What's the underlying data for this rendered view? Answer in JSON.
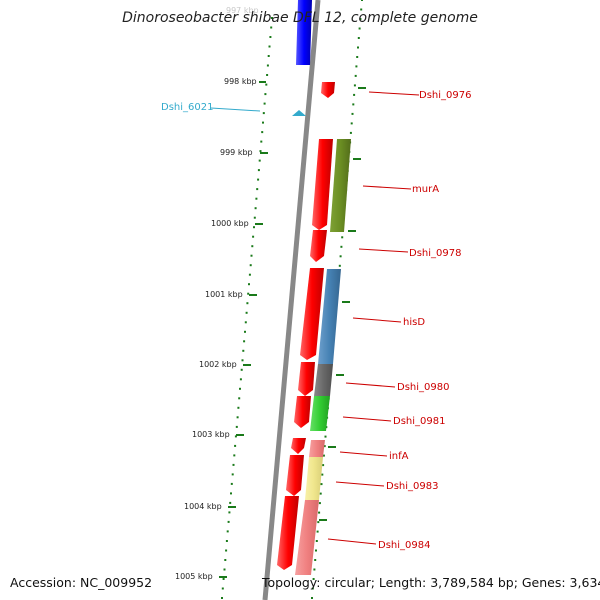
{
  "title": "Dinoroseobacter shibae DFL 12, complete genome",
  "footer": {
    "accession": "Accession: NC_009952",
    "topology": "Topology: circular; Length: 3,789,584 bp; Genes: 3,634"
  },
  "colors": {
    "forward_strand": "#ff0000",
    "reverse_strand_ticks": "#1a7a1a",
    "label_red": "#cc0000",
    "label_cyan": "#33aacc",
    "backbone": "#888888"
  },
  "scale": {
    "unit": "kbp",
    "top_partial": "997 kbp",
    "ticks": [
      "998 kbp",
      "999 kbp",
      "1000 kbp",
      "1001 kbp",
      "1002 kbp",
      "1003 kbp",
      "1004 kbp",
      "1005 kbp"
    ]
  },
  "features": [
    {
      "label": "Dshi_0976",
      "strand": "forward",
      "color": "#ff0000"
    },
    {
      "label": "murA",
      "strand": "reverse",
      "color": "#6b8e23"
    },
    {
      "label": "Dshi_0978",
      "strand": "forward",
      "color": "#ff0000"
    },
    {
      "label": "hisD",
      "strand": "reverse",
      "color": "#4682b4"
    },
    {
      "label": "Dshi_0980",
      "strand": "reverse",
      "color": "#696969"
    },
    {
      "label": "Dshi_0981",
      "strand": "reverse",
      "color": "#32cd32"
    },
    {
      "label": "infA",
      "strand": "reverse",
      "color": "#f08080"
    },
    {
      "label": "Dshi_0983",
      "strand": "reverse",
      "color": "#f0e68c"
    },
    {
      "label": "Dshi_0984",
      "strand": "reverse",
      "color": "#f08080"
    },
    {
      "label": "Dshi_6021",
      "strand": "forward",
      "color": "#33aacc"
    }
  ],
  "blue_feature_color": "#0000ff"
}
